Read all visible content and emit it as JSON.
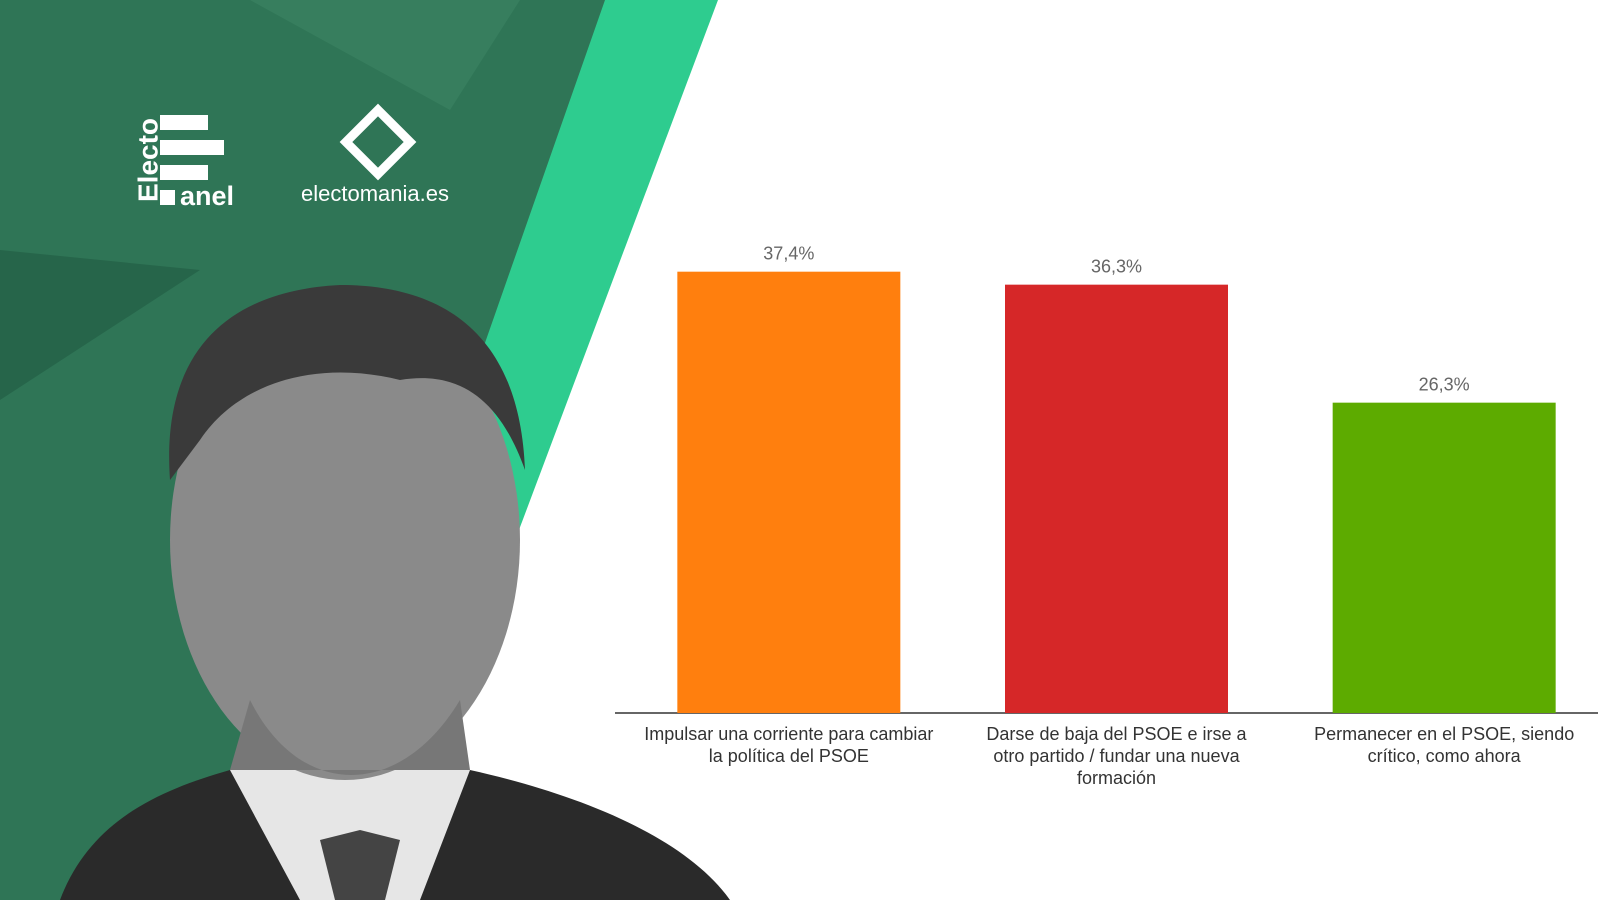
{
  "brand": {
    "logo_left_vertical": "Electo",
    "logo_left_bottom": "anel",
    "logo_right": "electomania.es"
  },
  "chart_data": {
    "type": "bar",
    "categories": [
      "Impulsar una corriente para cambiar la política del PSOE",
      "Darse de baja del PSOE e irse a otro partido / fundar una nueva formación",
      "Permanecer en el PSOE, siendo crítico, como ahora"
    ],
    "values": [
      37.4,
      36.3,
      26.3
    ],
    "value_labels": [
      "37,4%",
      "36,3%",
      "26,3%"
    ],
    "colors": [
      "#ff7f0e",
      "#d62728",
      "#5dab00"
    ]
  }
}
